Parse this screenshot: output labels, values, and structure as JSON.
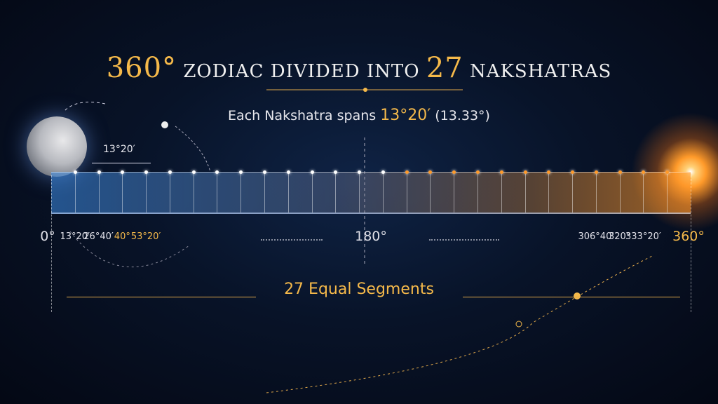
{
  "title": {
    "num": "360°",
    "mid": "ZODIAC DIVIDED INTO",
    "count": "27",
    "end": "NAKSHATRAS"
  },
  "subtitle": {
    "prefix": "Each Nakshatra spans",
    "span": "13°20′",
    "decimal": "(13.33°)"
  },
  "span_label": "13°20′",
  "segments": 27,
  "ticks": [
    {
      "label": "0°",
      "deg": 0,
      "style": "big"
    },
    {
      "label": "13°20′",
      "deg": 13.33
    },
    {
      "label": "26°40′",
      "deg": 26.67
    },
    {
      "label": "40°",
      "deg": 40,
      "style": "gold"
    },
    {
      "label": "53°20′",
      "deg": 53.33,
      "style": "gold"
    },
    {
      "label": "180°",
      "deg": 180,
      "style": "mid"
    },
    {
      "label": "306°40′",
      "deg": 306.67
    },
    {
      "label": "320°",
      "deg": 320
    },
    {
      "label": "333°20′",
      "deg": 333.33
    },
    {
      "label": "360°",
      "deg": 360,
      "style": "biggold"
    }
  ],
  "bottom_label": "27 Equal Segments",
  "colors": {
    "gold": "#f5b94a",
    "blue": "#3c8ce6",
    "orange": "#ff9a2a"
  }
}
